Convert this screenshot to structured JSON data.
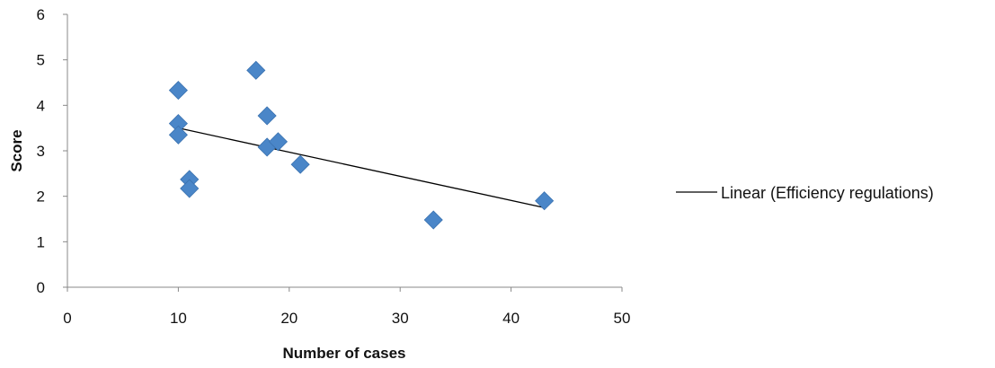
{
  "chart_data": {
    "type": "scatter",
    "title": "",
    "xlabel": "Number of cases",
    "ylabel": "Score",
    "xlim": [
      0,
      50
    ],
    "ylim": [
      0,
      6
    ],
    "x_ticks": [
      0,
      10,
      20,
      30,
      40,
      50
    ],
    "y_ticks": [
      0,
      1,
      2,
      3,
      4,
      5,
      6
    ],
    "grid": false,
    "legend_position": "right",
    "series": [
      {
        "marker": "diamond",
        "color": "#4a86c8",
        "points": [
          {
            "x": 10,
            "y": 4.33
          },
          {
            "x": 10,
            "y": 3.6
          },
          {
            "x": 10,
            "y": 3.35
          },
          {
            "x": 11,
            "y": 2.37
          },
          {
            "x": 11,
            "y": 2.17
          },
          {
            "x": 17,
            "y": 4.77
          },
          {
            "x": 18,
            "y": 3.77
          },
          {
            "x": 18,
            "y": 3.08
          },
          {
            "x": 19,
            "y": 3.2
          },
          {
            "x": 21,
            "y": 2.7
          },
          {
            "x": 33,
            "y": 1.48
          },
          {
            "x": 43,
            "y": 1.9
          }
        ]
      }
    ],
    "trendline": {
      "name": "Linear (Efficiency regulations)",
      "color": "#000000",
      "x_range": [
        10,
        43
      ],
      "y_values": [
        3.5,
        1.75
      ]
    }
  }
}
